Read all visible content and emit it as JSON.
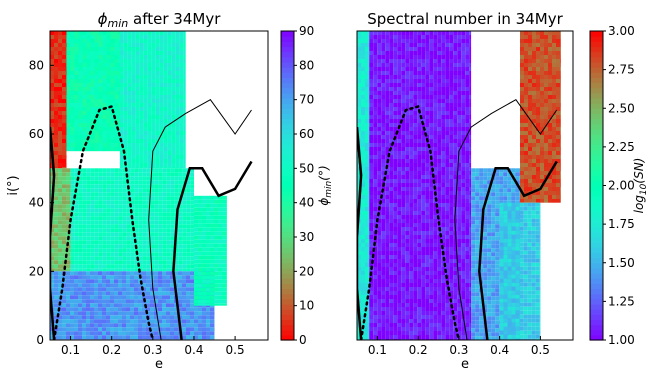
{
  "chart_data": [
    {
      "type": "heatmap",
      "title": "ϕmin after 34Myr",
      "title_parts": {
        "symbol": "ϕ",
        "sub": "min",
        "rest": " after 34Myr"
      },
      "xlabel": "e",
      "ylabel": "i(°)",
      "xlim": [
        0.05,
        0.58
      ],
      "ylim": [
        0,
        90
      ],
      "xticks": [
        "0.1",
        "0.2",
        "0.3",
        "0.4",
        "0.5"
      ],
      "yticks": [
        "0",
        "20",
        "40",
        "60",
        "80"
      ],
      "colormap": "rainbow_r",
      "colorbar": {
        "label": "ϕmin(°)",
        "label_parts": {
          "symbol": "ϕ",
          "sub": "min",
          "rest": "(°)"
        },
        "range": [
          0,
          90
        ],
        "ticks": [
          "0",
          "10",
          "20",
          "30",
          "40",
          "50",
          "60",
          "70",
          "80",
          "90"
        ]
      },
      "regions": [
        {
          "e": [
            0.05,
            0.09
          ],
          "i": [
            50,
            90
          ],
          "value": 5
        },
        {
          "e": [
            0.09,
            0.22
          ],
          "i": [
            55,
            90
          ],
          "value": 45
        },
        {
          "e": [
            0.22,
            0.38
          ],
          "i": [
            50,
            90
          ],
          "value": 52
        },
        {
          "e": [
            0.05,
            0.1
          ],
          "i": [
            20,
            50
          ],
          "value": 25
        },
        {
          "e": [
            0.1,
            0.4
          ],
          "i": [
            20,
            50
          ],
          "value": 50
        },
        {
          "e": [
            0.05,
            0.45
          ],
          "i": [
            0,
            20
          ],
          "value": 72
        },
        {
          "e": [
            0.4,
            0.48
          ],
          "i": [
            10,
            42
          ],
          "value": 48
        }
      ]
    },
    {
      "type": "heatmap",
      "title": "Spectral number in 34Myr",
      "xlabel": "e",
      "ylabel": "",
      "xlim": [
        0.05,
        0.58
      ],
      "ylim": [
        0,
        90
      ],
      "xticks": [
        "0.1",
        "0.2",
        "0.3",
        "0.4",
        "0.5"
      ],
      "colormap": "rainbow",
      "colorbar": {
        "label": "log10(SN)",
        "label_parts": {
          "base": "log",
          "sub": "10",
          "rest": "(SN)"
        },
        "range": [
          1.0,
          3.0
        ],
        "ticks": [
          "1.00",
          "1.25",
          "1.50",
          "1.75",
          "2.00",
          "2.25",
          "2.50",
          "2.75",
          "3.00"
        ]
      },
      "regions": [
        {
          "e": [
            0.05,
            0.08
          ],
          "i": [
            0,
            90
          ],
          "value": 1.75
        },
        {
          "e": [
            0.08,
            0.33
          ],
          "i": [
            0,
            90
          ],
          "value": 1.05
        },
        {
          "e": [
            0.33,
            0.45
          ],
          "i": [
            0,
            50
          ],
          "value": 1.45
        },
        {
          "e": [
            0.45,
            0.55
          ],
          "i": [
            40,
            90
          ],
          "value": 2.8
        },
        {
          "e": [
            0.4,
            0.5
          ],
          "i": [
            0,
            40
          ],
          "value": 1.6
        }
      ]
    }
  ],
  "curves": {
    "dotted": [
      [
        0.06,
        0
      ],
      [
        0.08,
        15
      ],
      [
        0.1,
        35
      ],
      [
        0.13,
        55
      ],
      [
        0.17,
        67
      ],
      [
        0.2,
        68
      ],
      [
        0.23,
        55
      ],
      [
        0.25,
        35
      ],
      [
        0.27,
        18
      ],
      [
        0.29,
        5
      ],
      [
        0.3,
        0
      ]
    ],
    "thin_left": [
      [
        0.05,
        60
      ],
      [
        0.06,
        45
      ],
      [
        0.05,
        30
      ],
      [
        0.05,
        15
      ],
      [
        0.05,
        0
      ]
    ],
    "thin_right": [
      [
        0.32,
        0
      ],
      [
        0.3,
        15
      ],
      [
        0.29,
        35
      ],
      [
        0.3,
        55
      ],
      [
        0.33,
        62
      ],
      [
        0.38,
        66
      ],
      [
        0.44,
        70
      ],
      [
        0.5,
        60
      ],
      [
        0.54,
        67
      ]
    ],
    "thick_left": [
      [
        0.05,
        62
      ],
      [
        0.06,
        48
      ],
      [
        0.05,
        30
      ],
      [
        0.05,
        15
      ],
      [
        0.06,
        0
      ]
    ],
    "thick_right": [
      [
        0.37,
        0
      ],
      [
        0.35,
        20
      ],
      [
        0.36,
        38
      ],
      [
        0.39,
        50
      ],
      [
        0.42,
        50
      ],
      [
        0.46,
        42
      ],
      [
        0.5,
        44
      ],
      [
        0.54,
        52
      ]
    ]
  }
}
